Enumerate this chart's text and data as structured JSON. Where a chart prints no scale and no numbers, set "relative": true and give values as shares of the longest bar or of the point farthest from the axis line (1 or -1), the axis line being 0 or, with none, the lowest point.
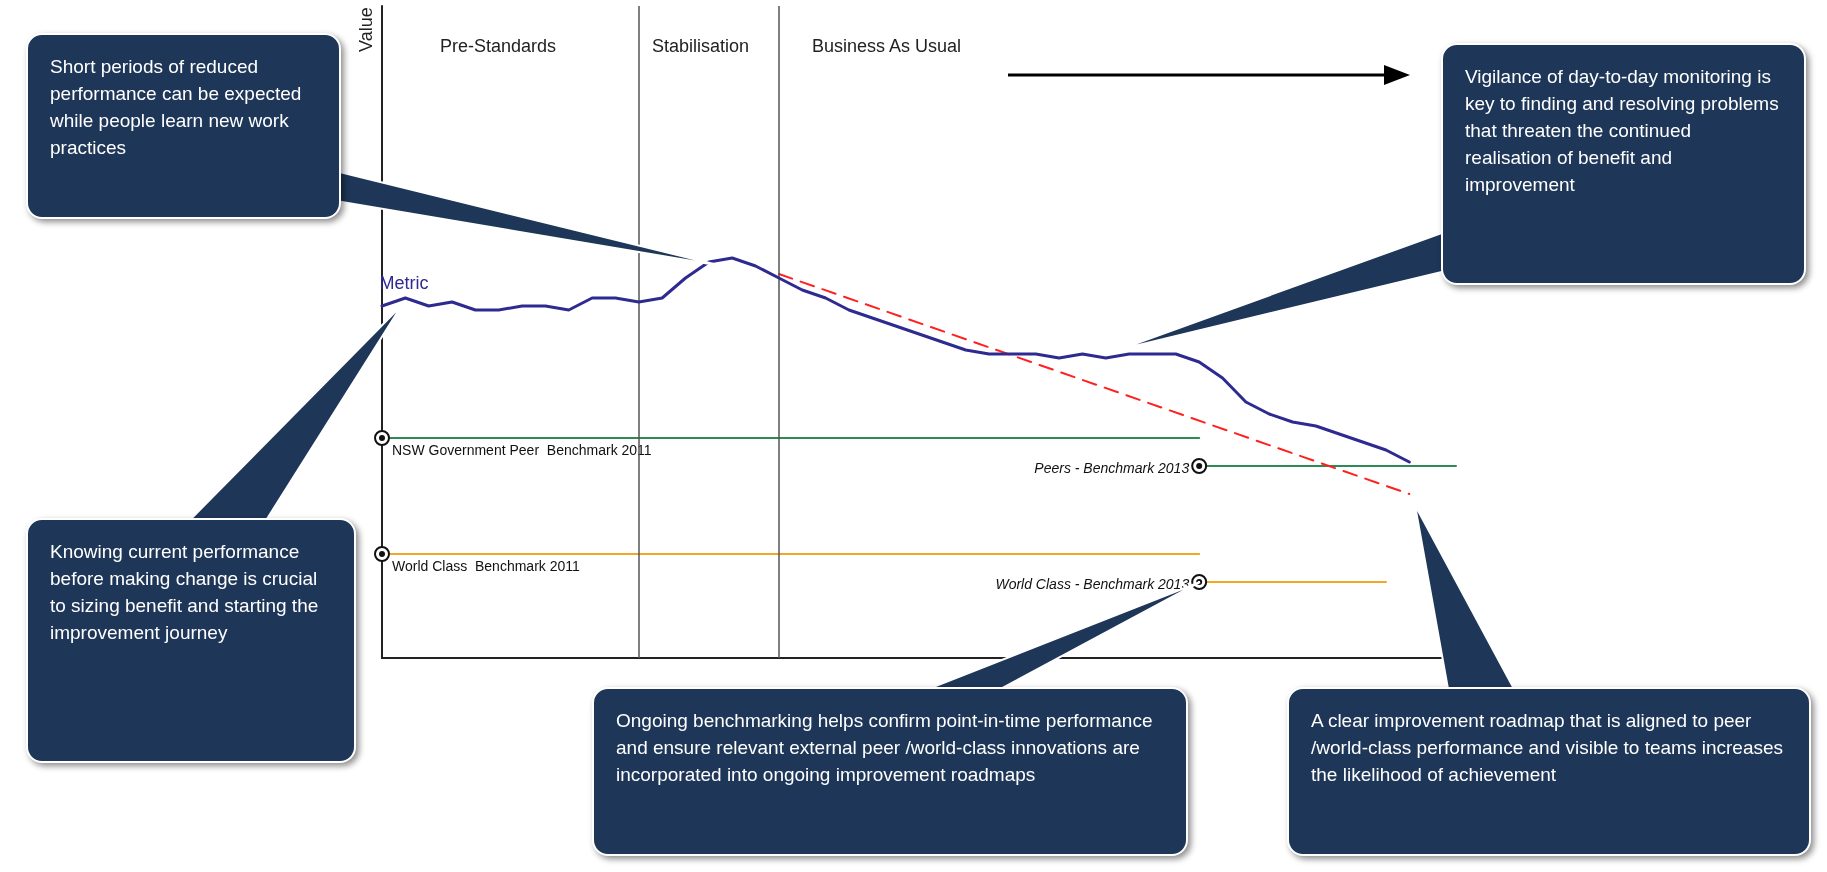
{
  "chart_data": {
    "type": "line",
    "relative": true,
    "grid": false,
    "legend": false,
    "categories": [
      null,
      null,
      null,
      null,
      null,
      null,
      null,
      null,
      null,
      null,
      null,
      null,
      null,
      null,
      null,
      null,
      null,
      null,
      null,
      null,
      null,
      null,
      null,
      null,
      null,
      null,
      null,
      null,
      null,
      null,
      null,
      null,
      null,
      null,
      null,
      null,
      null,
      null,
      null,
      null,
      null,
      null,
      null,
      null,
      null,
      null,
      null
    ],
    "series": [
      {
        "name": "Metric",
        "color": "#2e2a8f",
        "marker": "none",
        "line_style": "solid",
        "values": [
          0.88,
          0.9,
          0.88,
          0.89,
          0.87,
          0.87,
          0.88,
          0.88,
          0.87,
          0.9,
          0.9,
          0.89,
          0.9,
          0.95,
          0.99,
          1,
          0.98,
          0.95,
          0.92,
          0.9,
          0.87,
          0.85,
          0.83,
          0.81,
          0.79,
          0.77,
          0.76,
          0.76,
          0.76,
          0.75,
          0.76,
          0.75,
          0.76,
          0.76,
          0.76,
          0.74,
          0.7,
          0.64,
          0.61,
          0.59,
          0.58,
          0.56,
          0.54,
          0.52,
          0.49,
          null,
          null
        ]
      },
      {
        "name": "NSW Government Peer  Benchmark 2011",
        "color": "#2e8b57",
        "line_style": "solid",
        "values": [
          0.55,
          0.55,
          0.55,
          0.55,
          0.55,
          0.55,
          0.55,
          0.55,
          0.55,
          0.55,
          0.55,
          0.55,
          0.55,
          0.55,
          0.55,
          0.55,
          0.55,
          0.55,
          0.55,
          0.55,
          0.55,
          0.55,
          0.55,
          0.55,
          0.55,
          0.55,
          0.55,
          0.55,
          0.55,
          0.55,
          0.55,
          0.55,
          0.55,
          0.55,
          0.55,
          0.55,
          null,
          null,
          null,
          null,
          null,
          null,
          null,
          null,
          null,
          null,
          null
        ]
      },
      {
        "name": "Peers - Benchmark 2013",
        "color": "#2e8b57",
        "line_style": "solid",
        "values": [
          null,
          null,
          null,
          null,
          null,
          null,
          null,
          null,
          null,
          null,
          null,
          null,
          null,
          null,
          null,
          null,
          null,
          null,
          null,
          null,
          null,
          null,
          null,
          null,
          null,
          null,
          null,
          null,
          null,
          null,
          null,
          null,
          null,
          null,
          null,
          0.48,
          0.48,
          0.48,
          0.48,
          0.48,
          0.48,
          0.48,
          0.48,
          0.48,
          0.48,
          0.48,
          0.48
        ]
      },
      {
        "name": "World Class  Benchmark 2011",
        "color": "#f5a623",
        "line_style": "solid",
        "values": [
          0.26,
          0.26,
          0.26,
          0.26,
          0.26,
          0.26,
          0.26,
          0.26,
          0.26,
          0.26,
          0.26,
          0.26,
          0.26,
          0.26,
          0.26,
          0.26,
          0.26,
          0.26,
          0.26,
          0.26,
          0.26,
          0.26,
          0.26,
          0.26,
          0.26,
          0.26,
          0.26,
          0.26,
          0.26,
          0.26,
          0.26,
          0.26,
          0.26,
          0.26,
          0.26,
          0.26,
          null,
          null,
          null,
          null,
          null,
          null,
          null,
          null,
          null,
          null,
          null
        ]
      },
      {
        "name": "World Class - Benchmark 2013",
        "color": "#f5a623",
        "line_style": "solid",
        "values": [
          null,
          null,
          null,
          null,
          null,
          null,
          null,
          null,
          null,
          null,
          null,
          null,
          null,
          null,
          null,
          null,
          null,
          null,
          null,
          null,
          null,
          null,
          null,
          null,
          null,
          null,
          null,
          null,
          null,
          null,
          null,
          null,
          null,
          null,
          null,
          0.19,
          0.19,
          0.19,
          0.19,
          0.19,
          0.19,
          0.19,
          0.19,
          0.19,
          null,
          null,
          null
        ]
      },
      {
        "color": "#ff2020",
        "marker": "none",
        "line_style": "dashed",
        "values": [
          null,
          null,
          null,
          null,
          null,
          null,
          null,
          null,
          null,
          null,
          null,
          null,
          null,
          null,
          null,
          null,
          null,
          0.96,
          null,
          null,
          null,
          null,
          null,
          null,
          null,
          null,
          null,
          null,
          null,
          null,
          null,
          null,
          null,
          null,
          null,
          null,
          null,
          null,
          null,
          null,
          null,
          null,
          null,
          null,
          0.41,
          null,
          null
        ]
      }
    ],
    "annotations": [
      "Short periods of reduced performance can be expected while people learn new work practices",
      "Knowing current performance before making change is crucial to sizing benefit and starting the  improvement journey",
      "Vigilance of day-to-day monitoring is key to finding and resolving problems that threaten the continued realisation of benefit  and improvement",
      "Ongoing benchmarking  helps confirm point-in-time performance and ensure relevant external  peer /world-class innovations are incorporated into ongoing improvement roadmaps",
      "A clear improvement roadmap that is aligned to peer /world-class performance and visible to teams  increases the likelihood of achievement",
      "Value",
      "Pre-Standards",
      "Stabilisation",
      "Business As Usual"
    ]
  }
}
